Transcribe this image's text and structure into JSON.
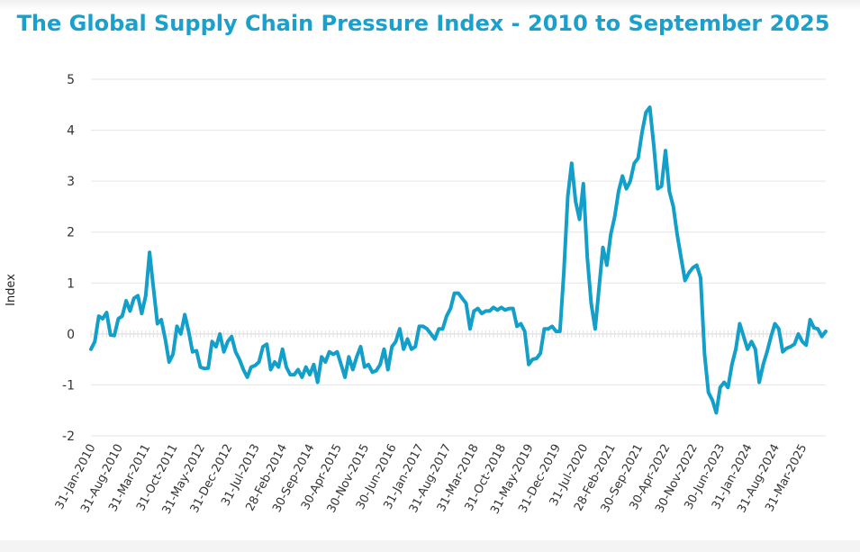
{
  "chart_data": {
    "type": "line",
    "title": "The Global Supply Chain Pressure Index - 2010 to September 2025",
    "xlabel": "",
    "ylabel": "Index",
    "ylim": [
      -2,
      5
    ],
    "yticks": [
      "5",
      "4",
      "3",
      "2",
      "1",
      "0",
      "-1",
      "-2"
    ],
    "grid": true,
    "legend": "none",
    "line_color": "#129fc9",
    "title_color": "#1aa0cc",
    "x_start": "Jan-2010",
    "x_end": "Sep-2025",
    "frequency": "monthly",
    "xtick_labels": [
      "31-Jan-2010",
      "31-Aug-2010",
      "31-Mar-2011",
      "31-Oct-2011",
      "31-May-2012",
      "31-Dec-2012",
      "31-Jul-2013",
      "28-Feb-2014",
      "30-Sep-2014",
      "30-Apr-2015",
      "30-Nov-2015",
      "30-Jun-2016",
      "31-Jan-2017",
      "31-Aug-2017",
      "31-Mar-2018",
      "31-Oct-2018",
      "31-May-2019",
      "31-Dec-2019",
      "31-Jul-2020",
      "28-Feb-2021",
      "30-Sep-2021",
      "30-Apr-2022",
      "30-Nov-2022",
      "30-Jun-2023",
      "31-Jan-2024",
      "31-Aug-2024",
      "31-Mar-2025"
    ],
    "values": [
      -0.3,
      -0.15,
      0.35,
      0.3,
      0.42,
      -0.02,
      -0.03,
      0.3,
      0.35,
      0.65,
      0.45,
      0.7,
      0.75,
      0.4,
      0.75,
      1.6,
      0.9,
      0.2,
      0.28,
      -0.1,
      -0.55,
      -0.4,
      0.15,
      0.0,
      0.38,
      0.05,
      -0.35,
      -0.33,
      -0.65,
      -0.68,
      -0.67,
      -0.15,
      -0.25,
      0.0,
      -0.35,
      -0.15,
      -0.05,
      -0.35,
      -0.5,
      -0.7,
      -0.85,
      -0.65,
      -0.62,
      -0.55,
      -0.25,
      -0.2,
      -0.7,
      -0.55,
      -0.65,
      -0.3,
      -0.65,
      -0.8,
      -0.8,
      -0.7,
      -0.85,
      -0.65,
      -0.8,
      -0.6,
      -0.95,
      -0.45,
      -0.55,
      -0.35,
      -0.4,
      -0.35,
      -0.6,
      -0.85,
      -0.45,
      -0.7,
      -0.45,
      -0.25,
      -0.65,
      -0.6,
      -0.75,
      -0.72,
      -0.6,
      -0.3,
      -0.7,
      -0.25,
      -0.15,
      0.1,
      -0.3,
      -0.1,
      -0.3,
      -0.25,
      0.15,
      0.15,
      0.1,
      0.0,
      -0.1,
      0.1,
      0.1,
      0.35,
      0.5,
      0.8,
      0.8,
      0.7,
      0.6,
      0.1,
      0.45,
      0.5,
      0.4,
      0.45,
      0.45,
      0.52,
      0.47,
      0.52,
      0.47,
      0.5,
      0.5,
      0.15,
      0.2,
      0.05,
      -0.6,
      -0.5,
      -0.48,
      -0.38,
      0.1,
      0.1,
      0.15,
      0.05,
      0.05,
      1.2,
      2.7,
      3.35,
      2.6,
      2.25,
      2.95,
      1.5,
      0.6,
      0.1,
      0.9,
      1.7,
      1.35,
      1.95,
      2.3,
      2.8,
      3.1,
      2.85,
      3.0,
      3.35,
      3.45,
      3.95,
      4.35,
      4.45,
      3.7,
      2.85,
      2.9,
      3.6,
      2.8,
      2.5,
      1.95,
      1.5,
      1.05,
      1.2,
      1.3,
      1.35,
      1.1,
      -0.4,
      -1.15,
      -1.3,
      -1.55,
      -1.05,
      -0.95,
      -1.05,
      -0.6,
      -0.3,
      0.2,
      -0.05,
      -0.3,
      -0.15,
      -0.3,
      -0.95,
      -0.6,
      -0.35,
      -0.05,
      0.2,
      0.1,
      -0.35,
      -0.28,
      -0.25,
      -0.2,
      0.0,
      -0.15,
      -0.22,
      0.28,
      0.12,
      0.1,
      -0.05,
      0.05
    ]
  }
}
